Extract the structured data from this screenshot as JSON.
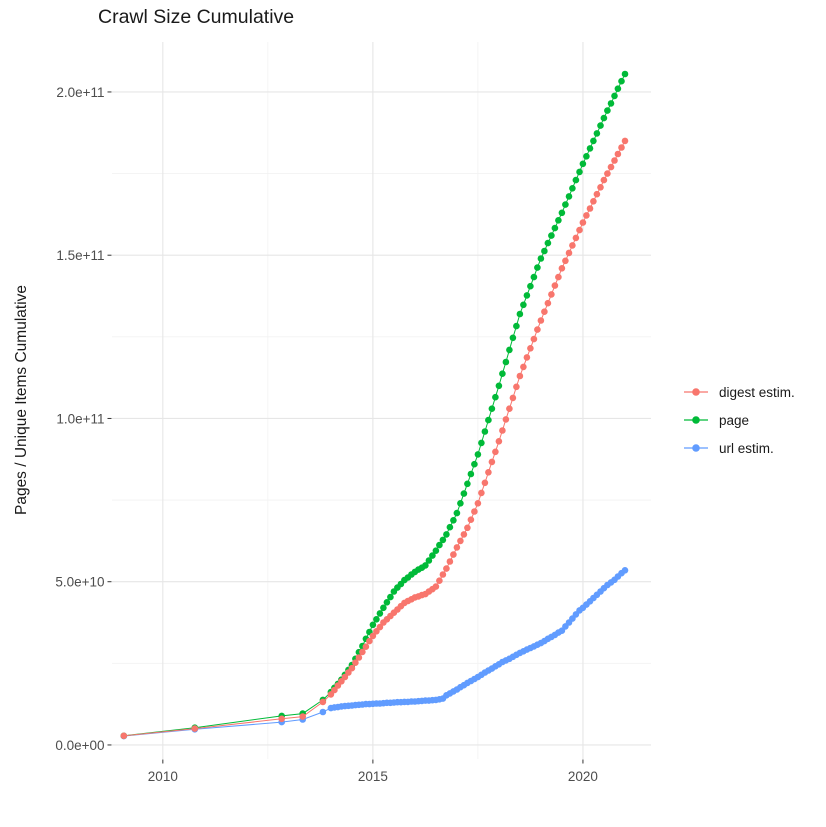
{
  "page": {
    "title": "Crawl Size Cumulative"
  },
  "colors": {
    "background": "#ffffff",
    "grid_major": "#e6e6e6",
    "grid_minor": "#f2f2f2",
    "tick_mark": "#333333",
    "tick_label": "#4d4d4d",
    "text": "#1a1a1a",
    "digest": "#F8766D",
    "page_series": "#00BA38",
    "url": "#619CFF"
  },
  "legend": {
    "items": [
      {
        "label": "digest estim.",
        "color": "#F8766D"
      },
      {
        "label": "page",
        "color": "#00BA38"
      },
      {
        "label": "url estim.",
        "color": "#619CFF"
      }
    ]
  },
  "chart_data": {
    "type": "line",
    "title": "Crawl Size Cumulative",
    "xlabel": "",
    "ylabel": "Pages / Unique Items Cumulative",
    "value_unit": "1e9 pages (billions); y axis shown in scientific notation",
    "grid": true,
    "legend_position": "right",
    "xlim": [
      2008.79,
      2021.62
    ],
    "ylim_e9": [
      -4.3,
      215.3
    ],
    "x_major_ticks": [
      {
        "value": 2010,
        "label": "2010"
      },
      {
        "value": 2015,
        "label": "2015"
      },
      {
        "value": 2020,
        "label": "2020"
      }
    ],
    "x_minor_ticks": [
      2012.5,
      2017.5
    ],
    "y_major_ticks": [
      {
        "value_e9": 0,
        "label": "0.0e+00"
      },
      {
        "value_e9": 50,
        "label": "5.0e+10"
      },
      {
        "value_e9": 100,
        "label": "1.0e+11"
      },
      {
        "value_e9": 150,
        "label": "1.5e+11"
      },
      {
        "value_e9": 200,
        "label": "2.0e+11"
      }
    ],
    "y_minor_ticks_e9": [
      25,
      75,
      125,
      175
    ],
    "x": [
      2009.07,
      2010.76,
      2012.83,
      2013.33,
      2013.81,
      2014,
      2014.083,
      2014.167,
      2014.25,
      2014.333,
      2014.417,
      2014.5,
      2014.583,
      2014.667,
      2014.75,
      2014.833,
      2014.917,
      2015,
      2015.083,
      2015.167,
      2015.25,
      2015.333,
      2015.417,
      2015.5,
      2015.583,
      2015.667,
      2015.75,
      2015.833,
      2015.917,
      2016,
      2016.083,
      2016.167,
      2016.25,
      2016.333,
      2016.417,
      2016.5,
      2016.583,
      2016.667,
      2016.75,
      2016.833,
      2016.917,
      2017,
      2017.083,
      2017.167,
      2017.25,
      2017.333,
      2017.417,
      2017.5,
      2017.583,
      2017.667,
      2017.75,
      2017.833,
      2017.917,
      2018,
      2018.083,
      2018.167,
      2018.25,
      2018.333,
      2018.417,
      2018.5,
      2018.583,
      2018.667,
      2018.75,
      2018.833,
      2018.917,
      2019,
      2019.083,
      2019.167,
      2019.25,
      2019.333,
      2019.417,
      2019.5,
      2019.583,
      2019.667,
      2019.75,
      2019.833,
      2019.917,
      2020,
      2020.083,
      2020.167,
      2020.25,
      2020.333,
      2020.417,
      2020.5,
      2020.583,
      2020.667,
      2020.75,
      2020.833,
      2020.917,
      2021
    ],
    "series": [
      {
        "name": "digest estim.",
        "color": "#F8766D",
        "values_e9": [
          2.8,
          5,
          8,
          8.7,
          13.2,
          15.5,
          16.8,
          18.2,
          19.5,
          20.8,
          22.2,
          23.5,
          25.2,
          26.8,
          28.5,
          30.1,
          31.8,
          33.4,
          34.8,
          36.1,
          37.5,
          38.5,
          39.5,
          40.5,
          41.5,
          42.5,
          43.5,
          44.1,
          44.6,
          45.2,
          45.5,
          45.9,
          46.2,
          47,
          47.7,
          48.5,
          50.3,
          52.2,
          54,
          56.2,
          58.3,
          60.5,
          62.5,
          64.5,
          66.5,
          69,
          71.5,
          74,
          77.2,
          80.3,
          83.5,
          86.7,
          89.8,
          93,
          96.3,
          99.7,
          103,
          106.3,
          109.7,
          113,
          115.8,
          118.7,
          121.5,
          124.3,
          127.2,
          130,
          132.7,
          135.3,
          138,
          140.7,
          143.3,
          146,
          148.3,
          150.7,
          153,
          155.3,
          157.7,
          160,
          162.2,
          164.3,
          166.5,
          168.7,
          170.8,
          173,
          175,
          177,
          179,
          181,
          183,
          185
        ]
      },
      {
        "name": "page",
        "color": "#00BA38",
        "values_e9": [
          2.8,
          5.3,
          8.9,
          9.6,
          13.8,
          16.2,
          17.5,
          18.7,
          20,
          21.5,
          23,
          24.5,
          26.4,
          28.4,
          30.3,
          32.5,
          34.6,
          36.8,
          38.5,
          40.3,
          42,
          43.7,
          45.3,
          47,
          48.2,
          49.3,
          50.5,
          51.3,
          52.2,
          53,
          53.7,
          54.3,
          55,
          56.5,
          58,
          59.5,
          61.2,
          62.8,
          64.5,
          66.7,
          68.8,
          71,
          74,
          77,
          80,
          83,
          86,
          89,
          92.5,
          96,
          99.5,
          103,
          106.5,
          110,
          113.7,
          117.3,
          121,
          124.7,
          128.3,
          132,
          134.8,
          137.7,
          140.5,
          143.3,
          146.2,
          149,
          151.3,
          153.7,
          156,
          158.3,
          160.7,
          163,
          165.5,
          168,
          170.5,
          173,
          175.5,
          178,
          180.3,
          182.7,
          185,
          187.3,
          189.7,
          192,
          194.3,
          196.5,
          198.8,
          201,
          203.3,
          205.5
        ]
      },
      {
        "name": "url estim.",
        "color": "#619CFF",
        "values_e9": [
          2.7,
          4.8,
          7,
          7.8,
          10.1,
          11.3,
          11.5,
          11.6,
          11.8,
          11.9,
          12,
          12.1,
          12.2,
          12.3,
          12.4,
          12.5,
          12.5,
          12.6,
          12.7,
          12.7,
          12.8,
          12.9,
          12.9,
          13,
          13.1,
          13.1,
          13.2,
          13.2,
          13.3,
          13.3,
          13.4,
          13.5,
          13.6,
          13.6,
          13.7,
          13.8,
          14,
          14.2,
          15.2,
          15.8,
          16.4,
          17,
          17.7,
          18.3,
          19,
          19.6,
          20.2,
          20.8,
          21.5,
          22.2,
          22.8,
          23.4,
          24.1,
          24.7,
          25.4,
          25.9,
          26.4,
          27,
          27.6,
          28.2,
          28.7,
          29.2,
          29.7,
          30.2,
          30.7,
          31.2,
          31.8,
          32.5,
          33.1,
          33.7,
          34.4,
          35,
          36.3,
          37.5,
          38.7,
          40,
          41.2,
          42,
          43,
          44,
          45,
          46,
          47,
          48,
          49,
          49.8,
          50.6,
          51.6,
          52.6,
          53.5
        ]
      }
    ],
    "draw_order": [
      "url estim.",
      "page",
      "digest estim."
    ]
  }
}
